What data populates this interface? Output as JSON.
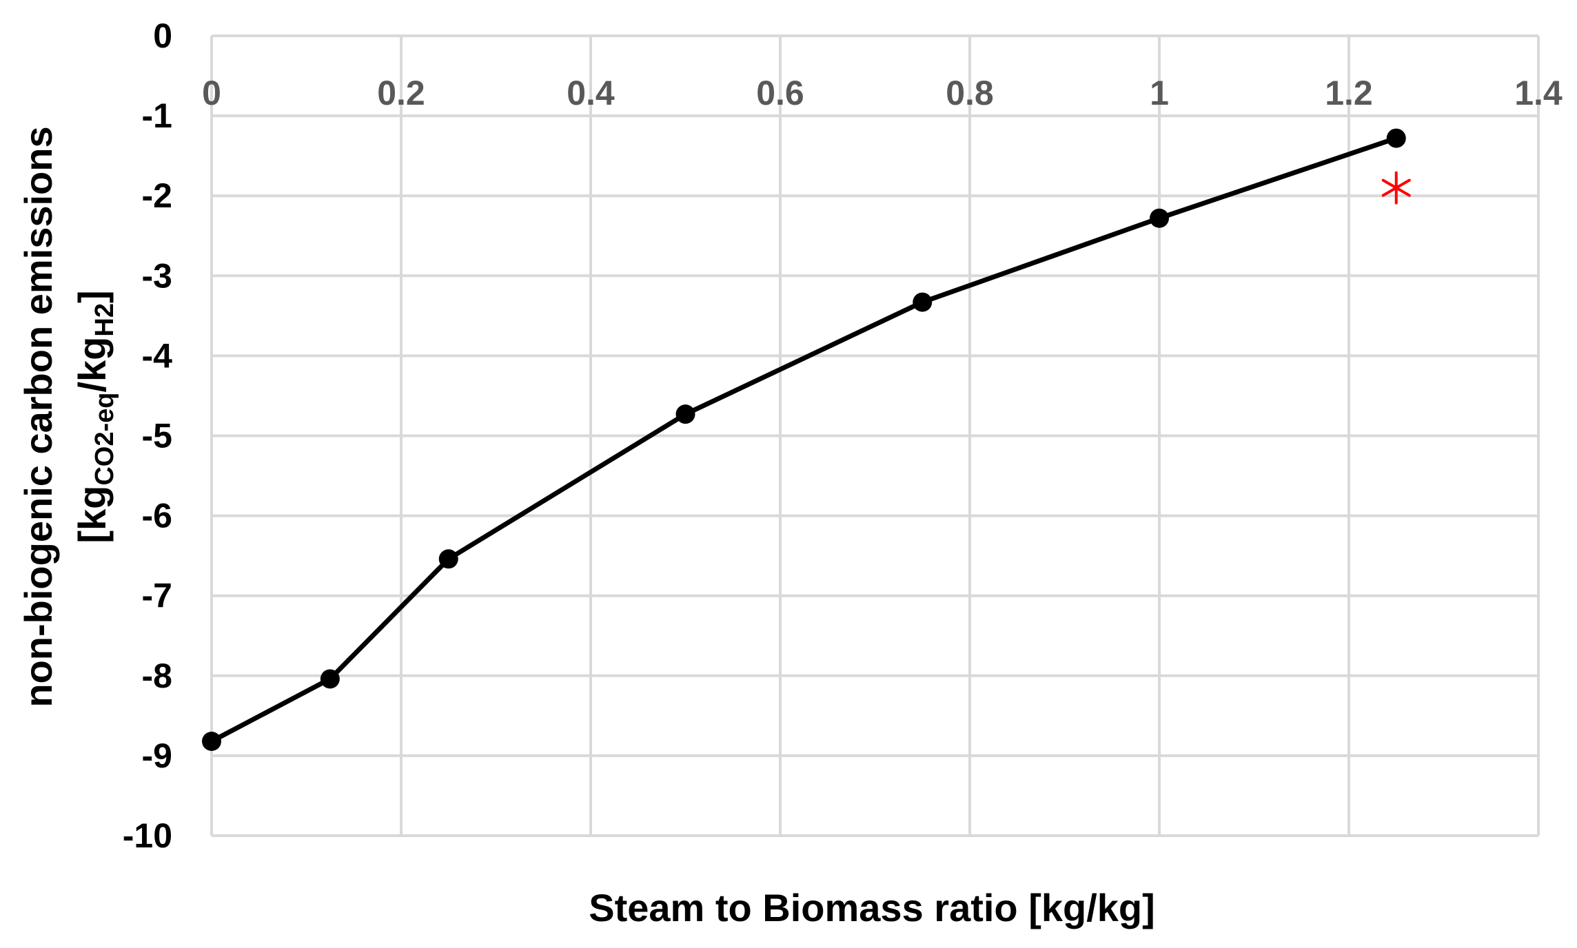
{
  "chart_data": {
    "type": "line",
    "title": "",
    "xlabel": "Steam to Biomass ratio [kg/kg]",
    "ylabel": {
      "line1": "non-biogenic carbon emissions",
      "line2_prefix": "[kg",
      "line2_sub1": "CO2-eq",
      "line2_mid": "/kg",
      "line2_sub2": "H2",
      "line2_suffix": "]"
    },
    "xlim": [
      0,
      1.4
    ],
    "ylim": [
      -10,
      0
    ],
    "xticks": [
      "0",
      "0.2",
      "0.4",
      "0.6",
      "0.8",
      "1",
      "1.2",
      "1.4"
    ],
    "yticks": [
      "0",
      "-1",
      "-2",
      "-3",
      "-4",
      "-5",
      "-6",
      "-7",
      "-8",
      "-9",
      "-10"
    ],
    "x_axis_position": "top",
    "grid": true,
    "series": [
      {
        "color": "#000000",
        "marker": "circle",
        "x": [
          0,
          0.125,
          0.25,
          0.5,
          0.75,
          1.0,
          1.25
        ],
        "y": [
          -8.82,
          -8.04,
          -6.54,
          -4.73,
          -3.33,
          -2.28,
          -1.28
        ]
      }
    ],
    "annotations": [
      {
        "marker": "asterisk",
        "color": "#ff0000",
        "x": 1.25,
        "y": -1.9
      }
    ]
  }
}
